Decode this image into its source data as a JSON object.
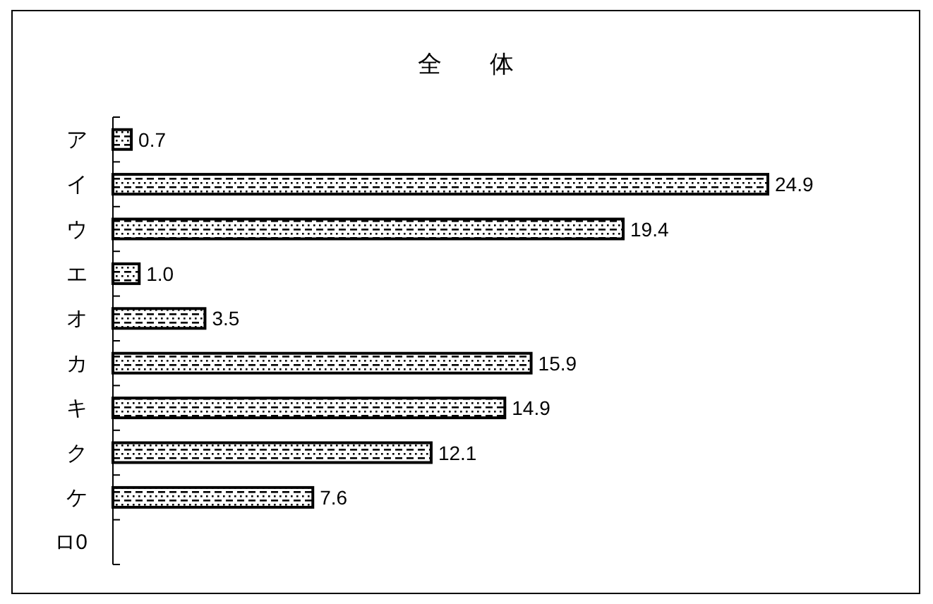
{
  "chart_data": {
    "type": "bar",
    "orientation": "horizontal",
    "title": "全　　体",
    "categories": [
      "ア",
      "イ",
      "ウ",
      "エ",
      "オ",
      "カ",
      "キ",
      "ク",
      "ケ",
      "ロ0"
    ],
    "values": [
      0.7,
      24.9,
      19.4,
      1.0,
      3.5,
      15.9,
      14.9,
      12.1,
      7.6,
      null
    ],
    "value_labels": [
      "0.7",
      "24.9",
      "19.4",
      "1.0",
      "3.5",
      "15.9",
      "14.9",
      "12.1",
      "7.6",
      null
    ]
  }
}
